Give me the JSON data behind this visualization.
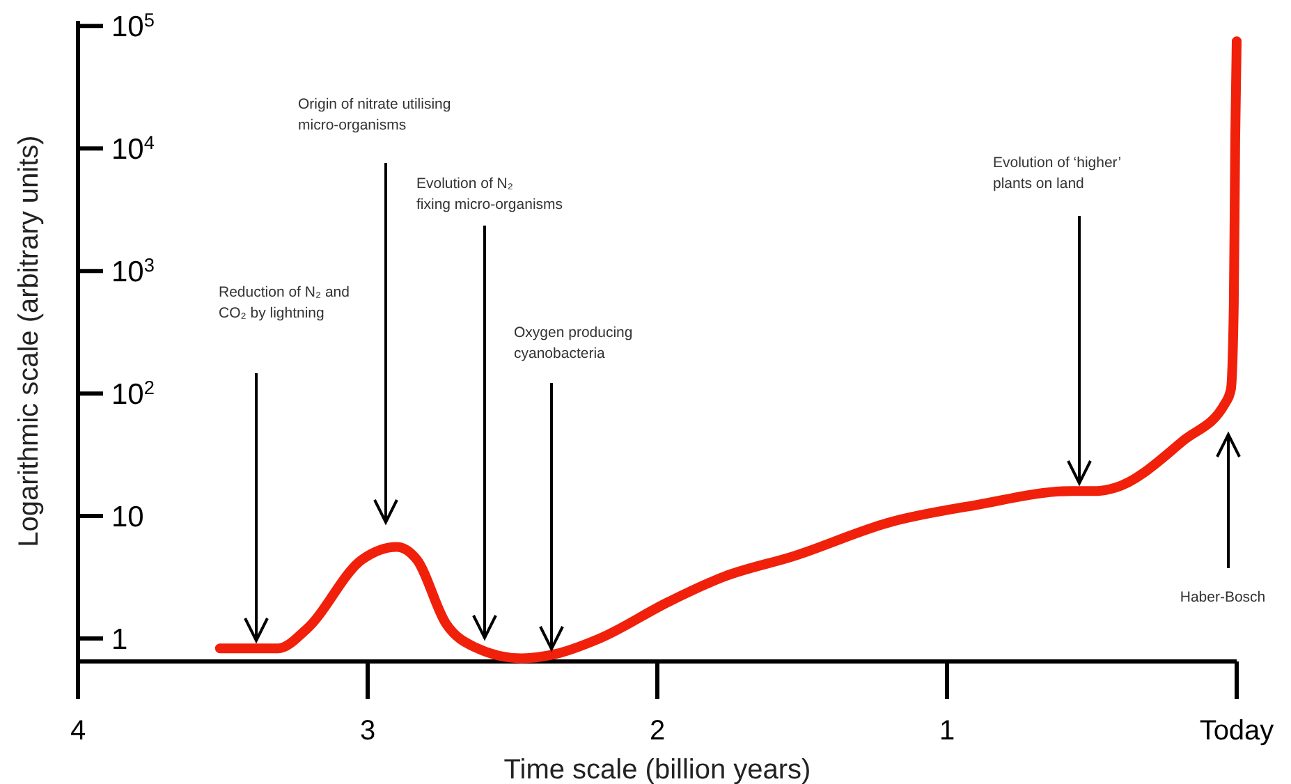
{
  "chart_data": {
    "type": "line",
    "xlabel": "Time scale (billion years)",
    "ylabel": "Logarithmic scale (arbitrary units)",
    "log": "y",
    "grid": false,
    "marker": "none",
    "line_style": "solid",
    "xlim": [
      4,
      0
    ],
    "xticks": [
      4,
      3,
      2,
      1,
      {
        "value": 0,
        "label": "Today"
      }
    ],
    "ylim": [
      0.65,
      110000
    ],
    "yticks": [
      1,
      10,
      {
        "value": 100,
        "label": "10$^{2}$"
      },
      {
        "value": 1000,
        "label": "10$^{3}$"
      },
      {
        "value": 10000,
        "label": "10$^{4}$"
      },
      {
        "value": 100000,
        "label": "10$^{5}$"
      }
    ],
    "x": [
      3.51,
      3.36,
      3.31,
      3.21,
      3.02,
      2.9,
      2.83,
      2.73,
      2.63,
      2.47,
      2.35,
      2.2,
      1.96,
      1.77,
      1.53,
      1.19,
      0.9,
      0.57,
      0.48,
      0.42,
      0.18,
      0.04,
      0.02,
      0.01,
      0.005,
      0.0
    ],
    "series": [
      {
        "color": "#f0200a",
        "values": [
          0.83,
          0.83,
          0.83,
          1.2,
          4.4,
          5.6,
          4.4,
          1.33,
          0.85,
          0.69,
          0.75,
          1.0,
          2.0,
          3.2,
          4.7,
          9.0,
          12.3,
          16,
          16,
          17,
          42,
          83,
          108,
          520,
          12000,
          75000
        ]
      }
    ],
    "annotations": [
      "Reduction of N₂ and CO₂ by lightning",
      "Origin of nitrate utilising micro-organisms",
      "Evolution of N₂ fixing micro-organisms",
      "Oxygen producing cyanobacteria",
      "Evolution of ‘higher’ plants on land",
      "Haber-Bosch"
    ]
  }
}
